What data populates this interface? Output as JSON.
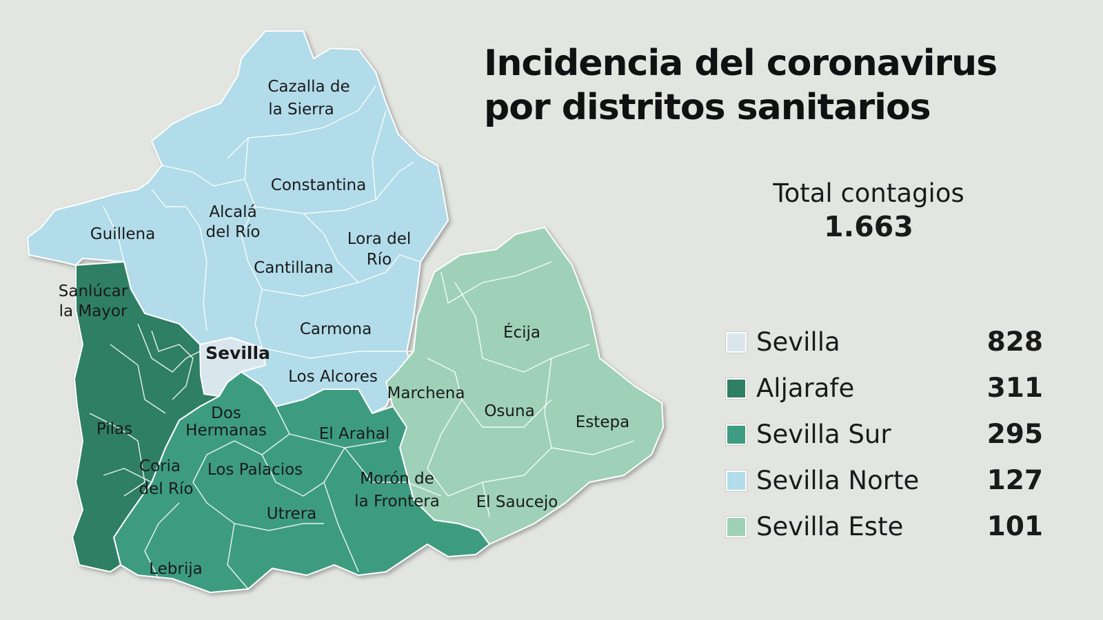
{
  "title_line1": "Incidencia del coronavirus",
  "title_line2": "por distritos sanitarios",
  "total": {
    "label": "Total contagios",
    "value": "1.663"
  },
  "legend": [
    {
      "name": "Sevilla",
      "value": "828",
      "color": "#dae6ee"
    },
    {
      "name": "Aljarafe",
      "value": "311",
      "color": "#2e7f63"
    },
    {
      "name": "Sevilla Sur",
      "value": "295",
      "color": "#3e9c80"
    },
    {
      "name": "Sevilla Norte",
      "value": "127",
      "color": "#b2dcea"
    },
    {
      "name": "Sevilla Este",
      "value": "101",
      "color": "#9ed1b8"
    }
  ],
  "map_labels": {
    "cazalla": [
      "Cazalla de",
      "la Sierra"
    ],
    "constantina": "Constantina",
    "guillena": "Guillena",
    "alcala": [
      "Alcalá",
      "del Río"
    ],
    "lora": [
      "Lora del",
      "Río"
    ],
    "cantillana": "Cantillana",
    "sanlucar": [
      "Sanlúcar",
      "la Mayor"
    ],
    "carmona": "Carmona",
    "sevilla": "Sevilla",
    "ecija": "Écija",
    "los_alcores": "Los Alcores",
    "marchena": "Marchena",
    "dos_hermanas": [
      "Dos",
      "Hermanas"
    ],
    "osuna": "Osuna",
    "estepa": "Estepa",
    "pilas": "Pilas",
    "el_arahal": "El Arahal",
    "coria": [
      "Coria",
      "del Río"
    ],
    "los_palacios": "Los Palacios",
    "moron": [
      "Morón de",
      "la Frontera"
    ],
    "el_saucejo": "El Saucejo",
    "utrera": "Utrera",
    "lebrija": "Lebrija"
  }
}
